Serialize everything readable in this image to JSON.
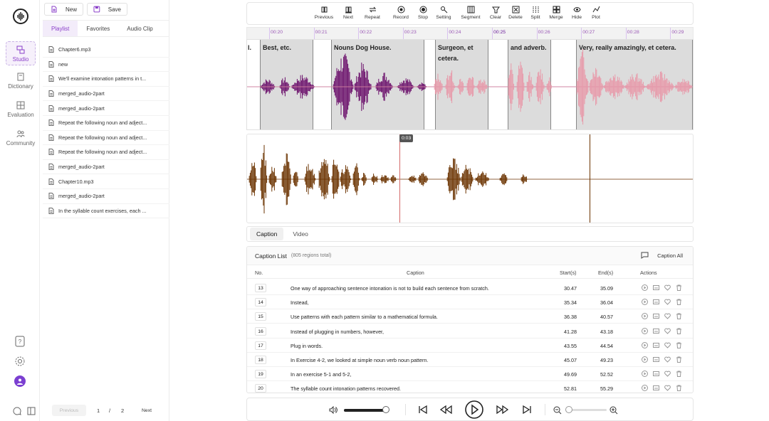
{
  "nav": {
    "items": [
      {
        "label": "Studio",
        "icon": "studio-icon",
        "active": true
      },
      {
        "label": "Dictionary",
        "icon": "dictionary-icon"
      },
      {
        "label": "Evaluation",
        "icon": "evaluation-icon"
      },
      {
        "label": "Community",
        "icon": "community-icon"
      }
    ],
    "bottom_icons": [
      "help-icon",
      "settings-icon",
      "avatar",
      "chat-icon",
      "collapse-panel-icon"
    ]
  },
  "playlist": {
    "new_label": "New",
    "save_label": "Save",
    "tabs": [
      "Playlist",
      "Favorites",
      "Audio Clip"
    ],
    "files": [
      "Chapter6.mp3",
      "new",
      "We'll examine intonation patterns in t...",
      "merged_audio-2part",
      "merged_audio-2part",
      "Repeat the following noun and adject...",
      "Repeat the following noun and adject...",
      "Repeat the following noun and adject...",
      "merged_audio-2part",
      "Chapter10.mp3",
      "merged_audio-2part",
      "In the syllable count exercises, each ..."
    ],
    "pager": {
      "prev": "Previous",
      "page": "1",
      "sep": "/",
      "total": "2",
      "next": "Next"
    }
  },
  "toolbar": {
    "tools": [
      "Previous",
      "Next",
      "Repeat",
      "Record",
      "Stop",
      "Setting",
      "Segment",
      "Clear",
      "Delete",
      "Split",
      "Merge",
      "Hide",
      "Plot"
    ]
  },
  "timeline": {
    "ticks": [
      "00:20",
      "00:21",
      "00:22",
      "00:23",
      "00:24",
      "00:25",
      "00:26",
      "00:27",
      "00:28",
      "00:29"
    ]
  },
  "regions": {
    "labels": [
      "l.",
      "Best, etc.",
      "Nouns Dog House.",
      "Surgeon, et",
      "cetera.",
      "and adverb.",
      "Very, really amazingly, et cetera."
    ]
  },
  "detail_wave": {
    "cursor_time": "0:03"
  },
  "caption_tabs": [
    "Caption",
    "Video"
  ],
  "caption_list": {
    "title": "Caption List",
    "count": "(805 regions total)",
    "caption_all": "Caption All",
    "columns": {
      "no": "No.",
      "caption": "Caption",
      "start": "Start(s)",
      "end": "End(s)",
      "actions": "Actions"
    },
    "rows": [
      {
        "no": "13",
        "caption": "One way of approaching sentence intonation is not to build each sentence from scratch.",
        "start": "30.47",
        "end": "35.09"
      },
      {
        "no": "14",
        "caption": "Instead,",
        "start": "35.34",
        "end": "36.04"
      },
      {
        "no": "15",
        "caption": "Use patterns with each pattern similar to a mathematical formula.",
        "start": "36.38",
        "end": "40.57"
      },
      {
        "no": "16",
        "caption": "Instead of plugging in numbers, however,",
        "start": "41.28",
        "end": "43.18"
      },
      {
        "no": "17",
        "caption": "Plug in words.",
        "start": "43.55",
        "end": "44.54"
      },
      {
        "no": "18",
        "caption": "In Exercise 4-2, we looked at simple noun verb noun pattern.",
        "start": "45.07",
        "end": "49.23"
      },
      {
        "no": "19",
        "caption": "In an exercise 5-1 and 5-2,",
        "start": "49.69",
        "end": "52.52"
      },
      {
        "no": "20",
        "caption": "The syllable count intonation patterns recovered.",
        "start": "52.81",
        "end": "55.29"
      }
    ]
  },
  "player": {
    "volume_level": 0.95,
    "zoom_level": 0.05
  },
  "colors": {
    "accent": "#8a3fc9",
    "wave_main": "#6b0f6b",
    "wave_light": "#e89aaa",
    "wave_detail": "#6b3300"
  }
}
